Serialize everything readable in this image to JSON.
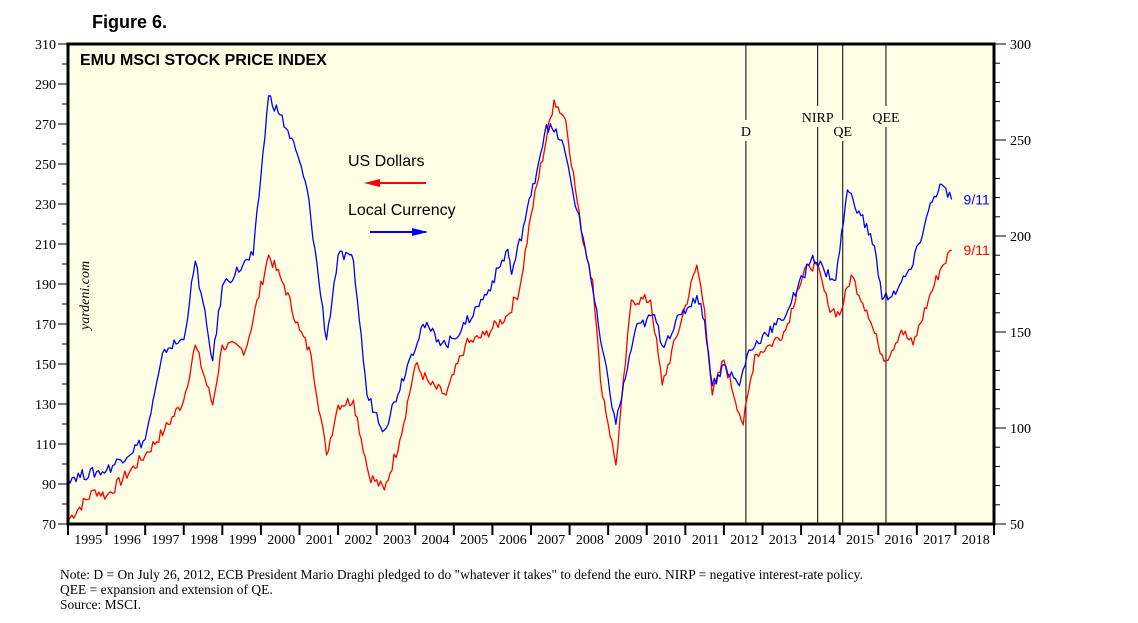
{
  "figure_label": "Figure 6.",
  "chart_data": {
    "type": "line",
    "title": "EMU MSCI STOCK PRICE INDEX",
    "watermark": "yardeni.com",
    "xlabel": "",
    "x_range": [
      1995,
      2019
    ],
    "x_tick_labels": [
      "1995",
      "1996",
      "1997",
      "1998",
      "1999",
      "2000",
      "2001",
      "2002",
      "2003",
      "2004",
      "2005",
      "2006",
      "2007",
      "2008",
      "2009",
      "2010",
      "2011",
      "2012",
      "2013",
      "2014",
      "2015",
      "2016",
      "2017",
      "2018"
    ],
    "left_axis": {
      "range": [
        70,
        310
      ],
      "tick_labels": [
        "70",
        "90",
        "110",
        "130",
        "150",
        "170",
        "190",
        "210",
        "230",
        "250",
        "270",
        "290",
        "310"
      ],
      "minor_step": 10
    },
    "right_axis": {
      "range": [
        50,
        300
      ],
      "tick_labels": [
        "50",
        "100",
        "150",
        "200",
        "250",
        "300"
      ],
      "minor_step": 10
    },
    "grid": false,
    "legend_placement": "top-left-center",
    "series": [
      {
        "name": "US Dollars",
        "axis": "left",
        "color": "#ff0000",
        "arrow": "left",
        "end_label": "9/11",
        "points": [
          [
            1995.0,
            72
          ],
          [
            1995.7,
            87
          ],
          [
            1996.0,
            84
          ],
          [
            1997.0,
            104.5
          ],
          [
            1997.5,
            117
          ],
          [
            1998.0,
            132
          ],
          [
            1998.3,
            159.5
          ],
          [
            1998.75,
            129.5
          ],
          [
            1999.0,
            159.5
          ],
          [
            1999.6,
            157
          ],
          [
            2000.2,
            204.5
          ],
          [
            2000.6,
            189.5
          ],
          [
            2001.0,
            167
          ],
          [
            2001.3,
            154.5
          ],
          [
            2001.7,
            104.5
          ],
          [
            2002.0,
            129.5
          ],
          [
            2002.4,
            132
          ],
          [
            2002.8,
            94.5
          ],
          [
            2003.2,
            87
          ],
          [
            2003.6,
            112
          ],
          [
            2004.0,
            149.5
          ],
          [
            2004.4,
            139.5
          ],
          [
            2004.8,
            134.5
          ],
          [
            2005.3,
            159.5
          ],
          [
            2005.8,
            164.5
          ],
          [
            2006.4,
            174.5
          ],
          [
            2006.7,
            187
          ],
          [
            2007.0,
            224.5
          ],
          [
            2007.6,
            282
          ],
          [
            2007.9,
            272
          ],
          [
            2008.3,
            217
          ],
          [
            2008.6,
            192
          ],
          [
            2008.8,
            142
          ],
          [
            2009.2,
            99.5
          ],
          [
            2009.6,
            182
          ],
          [
            2010.1,
            182
          ],
          [
            2010.4,
            139.5
          ],
          [
            2010.9,
            172
          ],
          [
            2011.3,
            199.5
          ],
          [
            2011.5,
            177
          ],
          [
            2011.7,
            134.5
          ],
          [
            2012.0,
            152
          ],
          [
            2012.5,
            119.5
          ],
          [
            2012.8,
            154.5
          ],
          [
            2013.2,
            159.5
          ],
          [
            2013.6,
            167
          ],
          [
            2013.9,
            187
          ],
          [
            2014.2,
            199.5
          ],
          [
            2014.4,
            199.5
          ],
          [
            2014.7,
            179.5
          ],
          [
            2015.0,
            174.5
          ],
          [
            2015.3,
            194.5
          ],
          [
            2015.7,
            177
          ],
          [
            2016.0,
            159.5
          ],
          [
            2016.2,
            152
          ],
          [
            2016.6,
            167
          ],
          [
            2016.9,
            159.5
          ],
          [
            2017.3,
            182
          ],
          [
            2017.6,
            197
          ],
          [
            2017.9,
            207
          ]
        ]
      },
      {
        "name": "Local Currency",
        "axis": "right",
        "color": "#0000ff",
        "arrow": "right",
        "end_label": "9/11",
        "points": [
          [
            1995.0,
            74
          ],
          [
            1996.0,
            78
          ],
          [
            1997.0,
            94
          ],
          [
            1997.5,
            141
          ],
          [
            1998.0,
            146
          ],
          [
            1998.3,
            187
          ],
          [
            1998.75,
            135
          ],
          [
            1999.0,
            174
          ],
          [
            1999.8,
            190
          ],
          [
            2000.2,
            273
          ],
          [
            2000.5,
            263
          ],
          [
            2000.9,
            245
          ],
          [
            2001.2,
            224
          ],
          [
            2001.7,
            146
          ],
          [
            2002.0,
            190
          ],
          [
            2002.4,
            187
          ],
          [
            2002.75,
            117
          ],
          [
            2003.2,
            99
          ],
          [
            2003.8,
            133
          ],
          [
            2004.2,
            154
          ],
          [
            2004.8,
            143
          ],
          [
            2005.3,
            154
          ],
          [
            2005.9,
            172
          ],
          [
            2006.4,
            193
          ],
          [
            2006.5,
            180
          ],
          [
            2007.0,
            221
          ],
          [
            2007.4,
            258
          ],
          [
            2007.8,
            250
          ],
          [
            2008.2,
            213
          ],
          [
            2008.5,
            185
          ],
          [
            2008.8,
            146
          ],
          [
            2009.2,
            102
          ],
          [
            2009.7,
            151
          ],
          [
            2010.2,
            159
          ],
          [
            2010.4,
            143
          ],
          [
            2010.9,
            159
          ],
          [
            2011.3,
            169
          ],
          [
            2011.5,
            156
          ],
          [
            2011.7,
            122
          ],
          [
            2012.0,
            133
          ],
          [
            2012.4,
            122
          ],
          [
            2012.6,
            138
          ],
          [
            2013.0,
            148
          ],
          [
            2013.5,
            156
          ],
          [
            2013.9,
            172
          ],
          [
            2014.3,
            190
          ],
          [
            2014.6,
            182
          ],
          [
            2014.9,
            177
          ],
          [
            2015.2,
            224
          ],
          [
            2015.5,
            213
          ],
          [
            2015.9,
            195
          ],
          [
            2016.1,
            167
          ],
          [
            2016.5,
            172
          ],
          [
            2016.9,
            185
          ],
          [
            2017.3,
            213
          ],
          [
            2017.6,
            227
          ],
          [
            2017.9,
            219
          ]
        ]
      }
    ],
    "event_lines": [
      {
        "label": "D",
        "x": 2012.57
      },
      {
        "label": "NIRP",
        "x": 2014.43
      },
      {
        "label": "QE",
        "x": 2015.08
      },
      {
        "label": "QEE",
        "x": 2016.2
      }
    ]
  },
  "notes": [
    "Note: D = On July 26, 2012, ECB President Mario Draghi pledged to do \"whatever it takes\" to defend the euro. NIRP = negative interest-rate policy.",
    "QEE = expansion and extension of QE.",
    "Source: MSCI."
  ]
}
